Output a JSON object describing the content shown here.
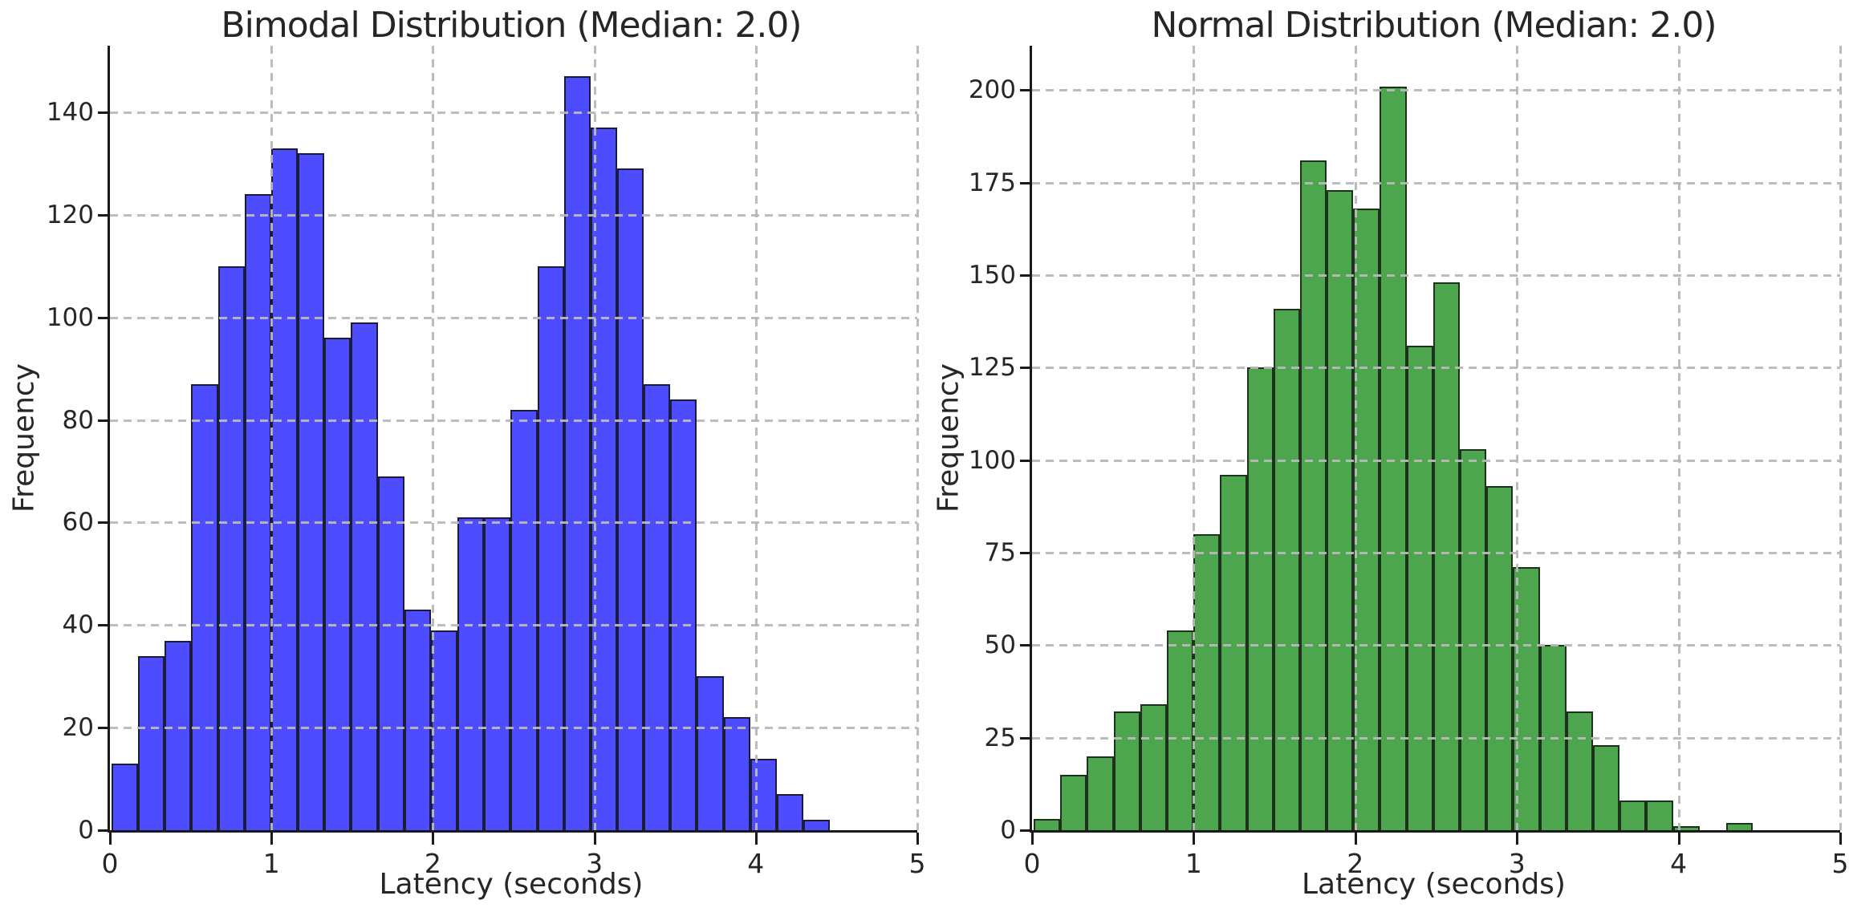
{
  "figure": {
    "background_color": "#ffffff",
    "grid_color": "#b9b9b9",
    "grid_style": "dashed, drawn over bars",
    "axis_color": "#1a1a1a",
    "text_color": "#262626"
  },
  "chart_data": [
    {
      "type": "histogram",
      "title": "Bimodal Distribution (Median: 2.0)",
      "xlabel": "Latency (seconds)",
      "ylabel": "Frequency",
      "bar_color": "#4d4dff",
      "bar_edge_color": "#1b1b3a",
      "xlim": [
        0,
        5
      ],
      "ylim": [
        0,
        153
      ],
      "x_ticks": [
        0,
        1,
        2,
        3,
        4,
        5
      ],
      "y_ticks": [
        0,
        20,
        40,
        60,
        80,
        100,
        120,
        140
      ],
      "bin_start": 0.01,
      "bin_width": 0.1648,
      "frequencies": [
        13,
        34,
        37,
        87,
        110,
        124,
        133,
        132,
        96,
        99,
        69,
        43,
        39,
        61,
        61,
        82,
        110,
        147,
        137,
        129,
        87,
        84,
        30,
        22,
        14,
        7,
        2
      ],
      "legend": "none",
      "grid": true
    },
    {
      "type": "histogram",
      "title": "Normal Distribution (Median: 2.0)",
      "xlabel": "Latency (seconds)",
      "ylabel": "Frequency",
      "bar_color": "#4da64d",
      "bar_edge_color": "#1c321c",
      "xlim": [
        0,
        5
      ],
      "ylim": [
        0,
        212
      ],
      "x_ticks": [
        0,
        1,
        2,
        3,
        4,
        5
      ],
      "y_ticks": [
        0,
        25,
        50,
        75,
        100,
        125,
        150,
        175,
        200
      ],
      "bin_start": 0.01,
      "bin_width": 0.1648,
      "frequencies": [
        3,
        15,
        20,
        32,
        34,
        54,
        80,
        96,
        125,
        141,
        181,
        173,
        168,
        201,
        131,
        148,
        103,
        93,
        71,
        50,
        32,
        23,
        8,
        8,
        1,
        0,
        2
      ],
      "legend": "none",
      "grid": true
    }
  ]
}
